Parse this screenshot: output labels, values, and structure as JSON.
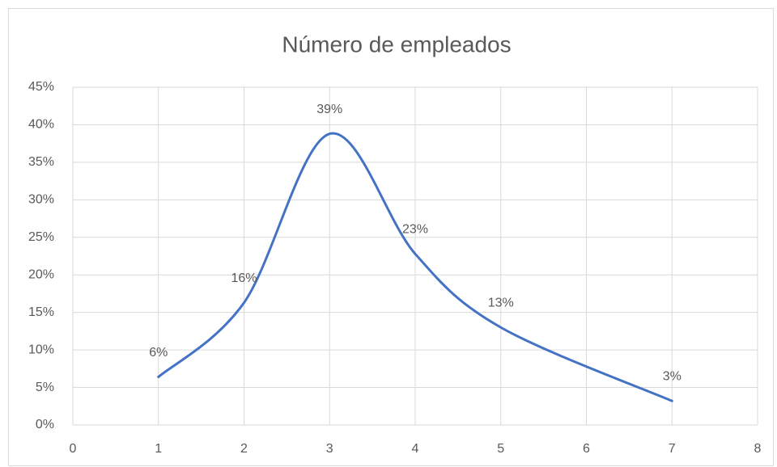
{
  "chart_data": {
    "type": "line",
    "title": "Número de empleados",
    "x": [
      1,
      2,
      3,
      4,
      5,
      7
    ],
    "series": [
      {
        "name": "Número de empleados",
        "color": "#4472c4",
        "values": [
          6.4,
          16.3,
          38.8,
          22.8,
          13.0,
          3.2
        ],
        "value_labels": [
          "6%",
          "16%",
          "39%",
          "23%",
          "13%",
          "3%"
        ]
      }
    ],
    "xlim": [
      0,
      8
    ],
    "xticks": [
      0,
      1,
      2,
      3,
      4,
      5,
      6,
      7,
      8
    ],
    "ylim": [
      0,
      45
    ],
    "yticks": [
      {
        "value": 0,
        "label": "0%"
      },
      {
        "value": 5,
        "label": "5%"
      },
      {
        "value": 10,
        "label": "10%"
      },
      {
        "value": 15,
        "label": "15%"
      },
      {
        "value": 20,
        "label": "20%"
      },
      {
        "value": 25,
        "label": "25%"
      },
      {
        "value": 30,
        "label": "30%"
      },
      {
        "value": 35,
        "label": "35%"
      },
      {
        "value": 40,
        "label": "40%"
      },
      {
        "value": 45,
        "label": "45%"
      }
    ],
    "grid": true,
    "smooth": true
  }
}
